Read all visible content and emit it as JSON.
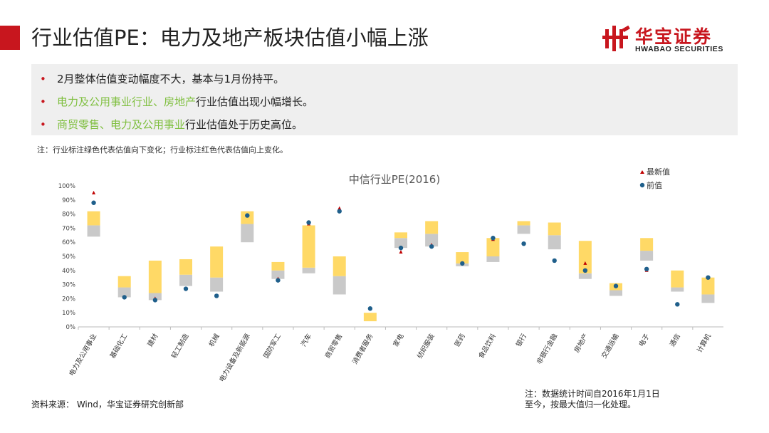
{
  "header": {
    "title": "行业估值PE：电力及地产板块估值小幅上涨",
    "brand_name": "华宝证券",
    "brand_en": "HWABAO SECURITIES"
  },
  "bullets": [
    {
      "highlight": "",
      "text": "2月整体估值变动幅度不大，基本与1月份持平。"
    },
    {
      "highlight": "电力及公用事业行业、房地产",
      "text": "行业估值出现小幅增长。"
    },
    {
      "highlight": "商贸零售、电力及公用事业",
      "text": "行业估值处于历史高位。"
    }
  ],
  "notes": {
    "top": "注：行业标注绿色代表估值向下变化；行业标注红色代表估值向上变化。",
    "source": "资料来源：  Wind，华宝证券研究创新部",
    "bottom_line1": "注：数据统计时间自2016年1月1日",
    "bottom_line2": "至今，按最大值归一化处理。"
  },
  "colors": {
    "accent": "#c8161e",
    "highlight_green": "#7fbf3f",
    "box_yellow": "#ffd966",
    "box_gray": "#c9c9c9",
    "marker_latest": "#c00000",
    "marker_prev": "#1f5f8b"
  },
  "chart_data": {
    "type": "box-range",
    "title": "中信行业PE(2016)",
    "ylim": [
      0,
      1
    ],
    "yticks": [
      "0%",
      "10%",
      "20%",
      "30%",
      "40%",
      "50%",
      "60%",
      "70%",
      "80%",
      "90%",
      "100%"
    ],
    "legend": [
      {
        "name": "最新值",
        "marker": "triangle"
      },
      {
        "name": "前值",
        "marker": "circle"
      }
    ],
    "legend_position": "top-right",
    "categories": [
      "电力及公用事业",
      "基础化工",
      "建材",
      "轻工制造",
      "机械",
      "电力设备及新能源",
      "国防军工",
      "汽车",
      "商贸零售",
      "消费者服务",
      "家电",
      "纺织服装",
      "医药",
      "食品饮料",
      "银行",
      "非银行金融",
      "房地产",
      "交通运输",
      "电子",
      "通信",
      "计算机"
    ],
    "box_bottom": [
      0.64,
      0.21,
      0.19,
      0.29,
      0.25,
      0.6,
      0.34,
      0.38,
      0.23,
      0.04,
      0.56,
      0.57,
      0.43,
      0.46,
      0.66,
      0.55,
      0.34,
      0.22,
      0.47,
      0.25,
      0.17
    ],
    "box_mid": [
      0.72,
      0.28,
      0.24,
      0.37,
      0.35,
      0.73,
      0.4,
      0.42,
      0.36,
      0.04,
      0.63,
      0.66,
      0.45,
      0.5,
      0.72,
      0.65,
      0.38,
      0.26,
      0.54,
      0.28,
      0.23
    ],
    "box_top": [
      0.82,
      0.36,
      0.47,
      0.48,
      0.57,
      0.82,
      0.46,
      0.72,
      0.5,
      0.1,
      0.67,
      0.75,
      0.53,
      0.63,
      0.75,
      0.74,
      0.61,
      0.31,
      0.63,
      0.4,
      0.35
    ],
    "latest": [
      0.95,
      0.21,
      0.2,
      0.27,
      0.22,
      0.79,
      0.34,
      0.73,
      0.84,
      0.13,
      0.53,
      0.58,
      0.45,
      0.62,
      0.59,
      0.47,
      0.45,
      0.29,
      0.4,
      0.16,
      0.35
    ],
    "previous": [
      0.88,
      0.21,
      0.19,
      0.27,
      0.22,
      0.79,
      0.33,
      0.74,
      0.82,
      0.13,
      0.56,
      0.57,
      0.45,
      0.63,
      0.59,
      0.47,
      0.4,
      0.29,
      0.41,
      0.16,
      0.35
    ]
  }
}
